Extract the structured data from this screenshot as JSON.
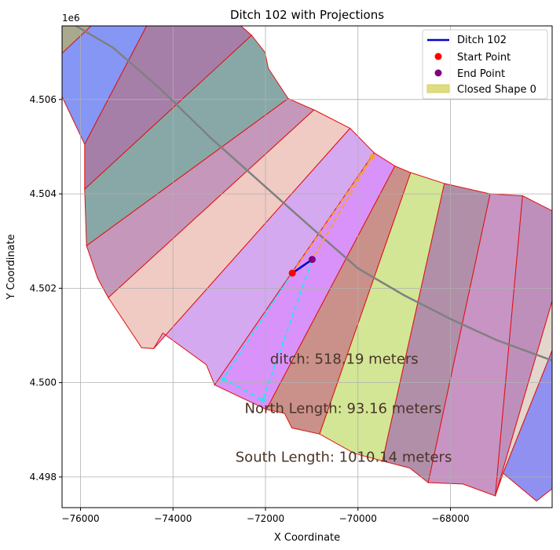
{
  "chart_data": {
    "type": "scatter",
    "title": "Ditch 102 with Projections",
    "xlabel": "X Coordinate",
    "ylabel": "Y Coordinate",
    "y_offset_label": "1e6",
    "xlim": [
      -76400,
      -65800
    ],
    "ylim": [
      4497350,
      4507560
    ],
    "x_ticks": [
      -76000,
      -74000,
      -72000,
      -70000,
      -68000
    ],
    "x_tick_labels": [
      "−76000",
      "−74000",
      "−72000",
      "−70000",
      "−68000"
    ],
    "y_ticks": [
      4498000,
      4500000,
      4502000,
      4504000,
      4506000
    ],
    "y_tick_labels": [
      "4.498",
      "4.500",
      "4.502",
      "4.504",
      "4.506"
    ],
    "grid": true,
    "legend_position": "top-right",
    "legend": [
      {
        "label": "Ditch 102",
        "kind": "line",
        "color": "#0000cc"
      },
      {
        "label": "Start Point",
        "kind": "dot",
        "color": "#ff0000"
      },
      {
        "label": "End Point",
        "kind": "dot",
        "color": "#800080"
      },
      {
        "label": "Closed Shape 0",
        "kind": "patch",
        "color": "#e0dc80"
      }
    ],
    "parcels": [
      {
        "color": "#a9a98d",
        "points": [
          [
            -76400,
            4507560
          ],
          [
            -75770,
            4507560
          ],
          [
            -76400,
            4506980
          ]
        ]
      },
      {
        "color": "#8596f5",
        "points": [
          [
            -75770,
            4507560
          ],
          [
            -74570,
            4507560
          ],
          [
            -75910,
            4505050
          ],
          [
            -76400,
            4506060
          ],
          [
            -76400,
            4506980
          ]
        ]
      },
      {
        "color": "#a57fa8",
        "points": [
          [
            -74570,
            4507560
          ],
          [
            -72530,
            4507560
          ],
          [
            -72300,
            4507360
          ],
          [
            -75910,
            4504100
          ],
          [
            -75910,
            4505050
          ]
        ]
      },
      {
        "color": "#88a8a8",
        "points": [
          [
            -72300,
            4507360
          ],
          [
            -72010,
            4507000
          ],
          [
            -71940,
            4506660
          ],
          [
            -71510,
            4506020
          ],
          [
            -75870,
            4502900
          ],
          [
            -75910,
            4504100
          ]
        ]
      },
      {
        "color": "#c497bb",
        "points": [
          [
            -71510,
            4506020
          ],
          [
            -70950,
            4505780
          ],
          [
            -75400,
            4501800
          ],
          [
            -75630,
            4502210
          ],
          [
            -75870,
            4502900
          ]
        ]
      },
      {
        "color": "#f0cbc3",
        "points": [
          [
            -70950,
            4505780
          ],
          [
            -70170,
            4505390
          ],
          [
            -74420,
            4500720
          ],
          [
            -74680,
            4500740
          ],
          [
            -75400,
            4501800
          ]
        ]
      },
      {
        "color": "#d4a9ef",
        "points": [
          [
            -70170,
            4505390
          ],
          [
            -69650,
            4504870
          ],
          [
            -73100,
            4499950
          ],
          [
            -73280,
            4500380
          ],
          [
            -74220,
            4501050
          ],
          [
            -74420,
            4500720
          ]
        ]
      },
      {
        "color": "#d992fa",
        "points": [
          [
            -69650,
            4504870
          ],
          [
            -69200,
            4504590
          ],
          [
            -71980,
            4499430
          ],
          [
            -73100,
            4499950
          ]
        ]
      },
      {
        "color": "#c9918a",
        "points": [
          [
            -69200,
            4504590
          ],
          [
            -68860,
            4504450
          ],
          [
            -70830,
            4498910
          ],
          [
            -71430,
            4499040
          ],
          [
            -71590,
            4499350
          ],
          [
            -71980,
            4499430
          ]
        ]
      },
      {
        "color": "#d2e696",
        "points": [
          [
            -68860,
            4504450
          ],
          [
            -68130,
            4504220
          ],
          [
            -69470,
            4498340
          ],
          [
            -70080,
            4498500
          ],
          [
            -70830,
            4498910
          ]
        ]
      },
      {
        "color": "#b18fa9",
        "points": [
          [
            -68130,
            4504220
          ],
          [
            -67140,
            4504000
          ],
          [
            -68480,
            4497880
          ],
          [
            -68880,
            4498190
          ],
          [
            -69470,
            4498340
          ]
        ]
      },
      {
        "color": "#c794c4",
        "points": [
          [
            -67140,
            4504000
          ],
          [
            -66440,
            4503960
          ],
          [
            -67030,
            4497600
          ],
          [
            -67730,
            4497850
          ],
          [
            -68480,
            4497880
          ]
        ]
      },
      {
        "color": "#bf8fbc",
        "points": [
          [
            -66440,
            4503960
          ],
          [
            -65800,
            4503640
          ],
          [
            -65800,
            4501730
          ],
          [
            -67030,
            4497600
          ]
        ]
      },
      {
        "color": "#e3d6cc",
        "points": [
          [
            -65800,
            4501730
          ],
          [
            -65800,
            4500680
          ],
          [
            -66860,
            4498080
          ],
          [
            -67030,
            4497600
          ]
        ]
      },
      {
        "color": "#9090f0",
        "points": [
          [
            -65800,
            4500680
          ],
          [
            -65800,
            4497750
          ],
          [
            -66140,
            4497490
          ],
          [
            -66860,
            4498080
          ]
        ]
      }
    ],
    "road": [
      [
        -76100,
        4507560
      ],
      [
        -75300,
        4507100
      ],
      [
        -74300,
        4506250
      ],
      [
        -73200,
        4505200
      ],
      [
        -72000,
        4504150
      ],
      [
        -71000,
        4503280
      ],
      [
        -70000,
        4502420
      ],
      [
        -69000,
        4501850
      ],
      [
        -68000,
        4501350
      ],
      [
        -67000,
        4500900
      ],
      [
        -65800,
        4500470
      ]
    ],
    "ditch": [
      [
        -71420,
        4502320
      ],
      [
        -70990,
        4502610
      ]
    ],
    "start_point": [
      -71420,
      4502320
    ],
    "end_point": [
      -70990,
      4502610
    ],
    "north_projection": [
      [
        -71420,
        4502320
      ],
      [
        -69690,
        4504790
      ],
      [
        -70990,
        4502610
      ]
    ],
    "south_projection": [
      [
        -71420,
        4502320
      ],
      [
        -72910,
        4500080
      ],
      [
        -72060,
        4499630
      ],
      [
        -70990,
        4502610
      ]
    ],
    "annotations": [
      {
        "text": "ditch: 518.19 meters",
        "x": -71900,
        "y": 4500400
      },
      {
        "text": "North Length: 93.16 meters",
        "x": -72450,
        "y": 4499350
      },
      {
        "text": "South Length: 1010.14 meters",
        "x": -72650,
        "y": 4498320
      }
    ]
  }
}
